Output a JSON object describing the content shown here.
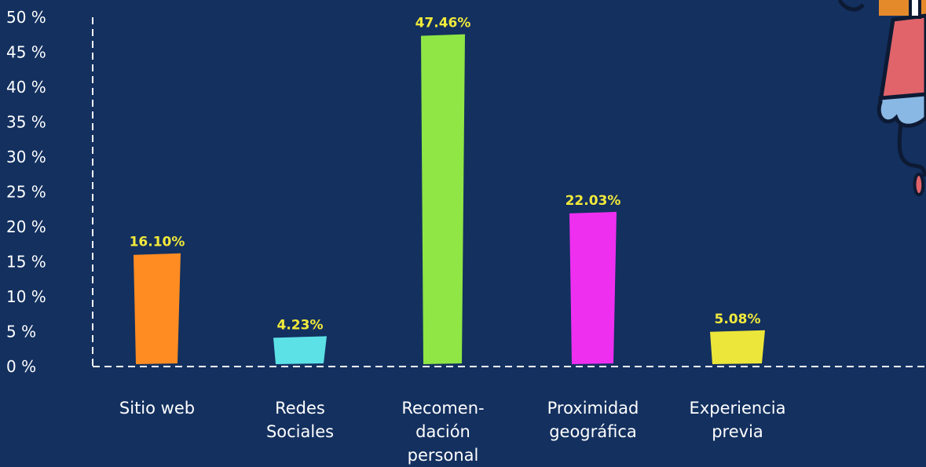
{
  "chart_data": {
    "type": "bar",
    "categories": [
      [
        "Sitio web"
      ],
      [
        "Redes",
        "Sociales"
      ],
      [
        "Recomen-",
        "dación",
        "personal"
      ],
      [
        "Proximidad",
        "geográfica"
      ],
      [
        "Experiencia",
        "previa"
      ]
    ],
    "values": [
      16.1,
      4.23,
      47.46,
      22.03,
      5.08
    ],
    "data_labels": [
      "16.10%",
      "4.23%",
      "47.46%",
      "22.03%",
      "5.08%"
    ],
    "colors": [
      "#ff8c22",
      "#5ce1e6",
      "#8fe645",
      "#ee2ff0",
      "#ece63a"
    ],
    "yticks": [
      "0 %",
      "5 %",
      "10 %",
      "15 %",
      "20 %",
      "25 %",
      "30 %",
      "35 %",
      "40 %",
      "45 %",
      "50 %"
    ],
    "ylim": [
      0,
      50
    ],
    "title": "",
    "xlabel": "",
    "ylabel": "",
    "grid": false,
    "label_color": "#f2ea3a",
    "background": "#13305f"
  }
}
